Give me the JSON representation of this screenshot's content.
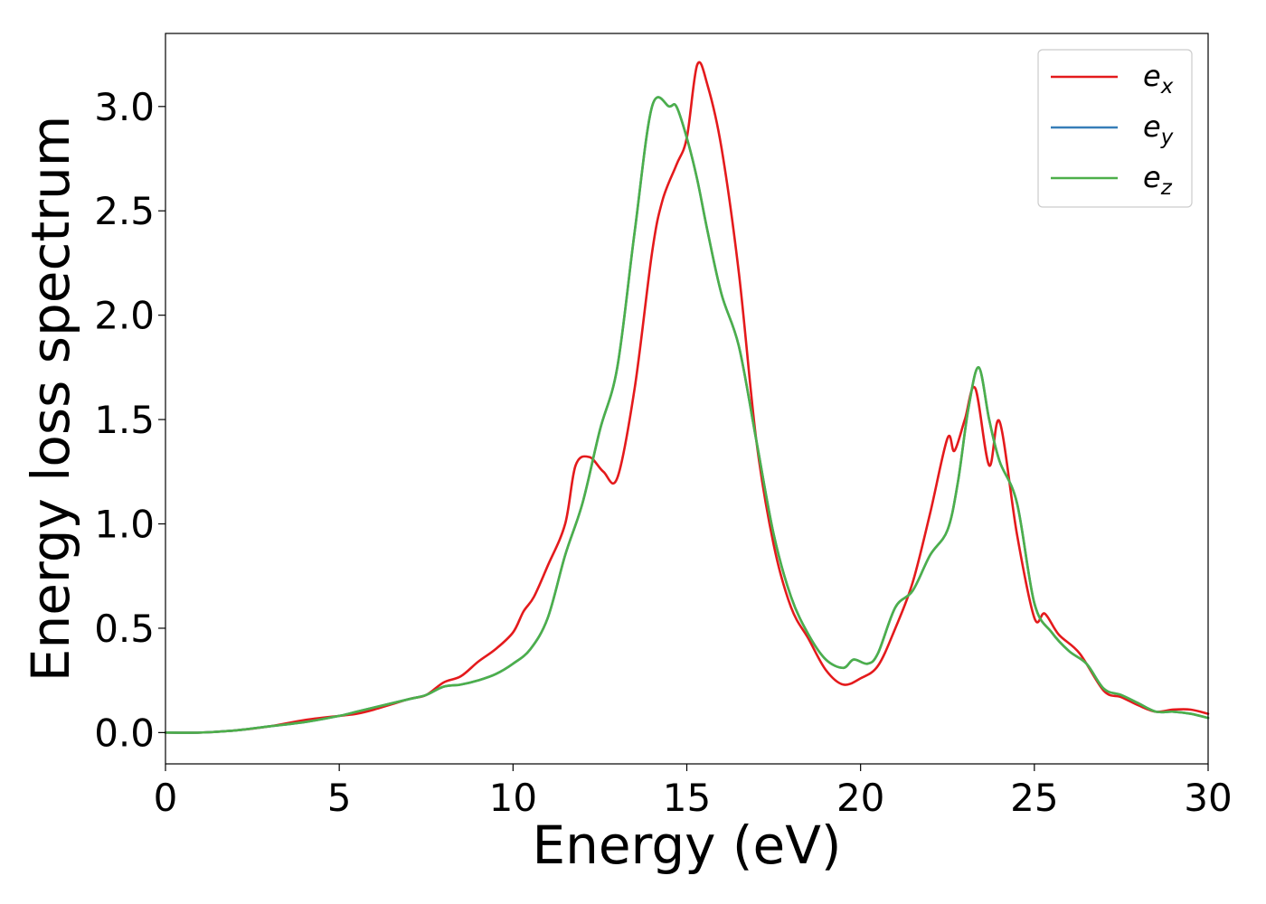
{
  "chart_data": {
    "type": "line",
    "title": "",
    "xlabel": "Energy (eV)",
    "ylabel": "Energy loss spectrum",
    "xlim": [
      0,
      30
    ],
    "ylim": [
      -0.15,
      3.35
    ],
    "xticks": [
      0,
      5,
      10,
      15,
      20,
      25,
      30
    ],
    "xtick_labels": [
      "0",
      "5",
      "10",
      "15",
      "20",
      "25",
      "30"
    ],
    "yticks": [
      0.0,
      0.5,
      1.0,
      1.5,
      2.0,
      2.5,
      3.0
    ],
    "ytick_labels": [
      "0.0",
      "0.5",
      "1.0",
      "1.5",
      "2.0",
      "2.5",
      "3.0"
    ],
    "grid": false,
    "legend_position": "top-right",
    "series": [
      {
        "name": "e",
        "subscript": "x",
        "color": "#e41a1c",
        "x": [
          0,
          1,
          2,
          3,
          4,
          5,
          5.5,
          6,
          7,
          7.5,
          8,
          8.5,
          9,
          9.5,
          10,
          10.3,
          10.6,
          11,
          11.5,
          11.8,
          12.2,
          12.6,
          13,
          13.5,
          14,
          14.3,
          14.7,
          15,
          15.3,
          15.6,
          16,
          16.5,
          17,
          17.5,
          18,
          18.5,
          19,
          19.5,
          20,
          20.5,
          21,
          21.5,
          22,
          22.5,
          22.7,
          23,
          23.3,
          23.7,
          24,
          24.5,
          25,
          25.3,
          25.7,
          26.3,
          27,
          27.5,
          28,
          28.5,
          29,
          29.5,
          30
        ],
        "y": [
          0.0,
          0.0,
          0.01,
          0.03,
          0.06,
          0.08,
          0.09,
          0.11,
          0.16,
          0.18,
          0.24,
          0.27,
          0.34,
          0.4,
          0.48,
          0.58,
          0.65,
          0.8,
          1.0,
          1.28,
          1.32,
          1.25,
          1.22,
          1.65,
          2.3,
          2.55,
          2.72,
          2.85,
          3.2,
          3.1,
          2.8,
          2.2,
          1.4,
          0.9,
          0.6,
          0.45,
          0.3,
          0.23,
          0.26,
          0.32,
          0.5,
          0.72,
          1.05,
          1.41,
          1.35,
          1.5,
          1.65,
          1.28,
          1.49,
          0.95,
          0.55,
          0.57,
          0.47,
          0.38,
          0.2,
          0.17,
          0.13,
          0.1,
          0.11,
          0.11,
          0.09
        ]
      },
      {
        "name": "e",
        "subscript": "y",
        "color": "#377eb8",
        "x": [
          0,
          1,
          2,
          3,
          4,
          5,
          5.5,
          6,
          7,
          7.5,
          8,
          8.5,
          9,
          9.5,
          10,
          10.5,
          11,
          11.5,
          12,
          12.5,
          13,
          13.5,
          14,
          14.5,
          14.7,
          15,
          15.3,
          15.6,
          16,
          16.5,
          17,
          17.5,
          18,
          18.5,
          19,
          19.5,
          19.8,
          20.2,
          20.5,
          21,
          21.5,
          22,
          22.5,
          22.8,
          23.1,
          23.4,
          23.7,
          24,
          24.5,
          25,
          25.5,
          26,
          26.5,
          27,
          27.5,
          28,
          28.5,
          29,
          29.5,
          30
        ],
        "y": [
          0.0,
          0.0,
          0.01,
          0.03,
          0.05,
          0.08,
          0.1,
          0.12,
          0.16,
          0.18,
          0.22,
          0.23,
          0.25,
          0.28,
          0.33,
          0.4,
          0.55,
          0.85,
          1.1,
          1.45,
          1.75,
          2.4,
          3.0,
          3.0,
          3.0,
          2.85,
          2.65,
          2.4,
          2.1,
          1.85,
          1.4,
          0.95,
          0.65,
          0.47,
          0.35,
          0.31,
          0.35,
          0.33,
          0.38,
          0.6,
          0.68,
          0.85,
          0.97,
          1.2,
          1.55,
          1.75,
          1.5,
          1.3,
          1.1,
          0.62,
          0.48,
          0.39,
          0.33,
          0.21,
          0.18,
          0.14,
          0.1,
          0.1,
          0.09,
          0.07
        ]
      },
      {
        "name": "e",
        "subscript": "z",
        "color": "#4daf4a",
        "x": [
          0,
          1,
          2,
          3,
          4,
          5,
          5.5,
          6,
          7,
          7.5,
          8,
          8.5,
          9,
          9.5,
          10,
          10.5,
          11,
          11.5,
          12,
          12.5,
          13,
          13.5,
          14,
          14.5,
          14.7,
          15,
          15.3,
          15.6,
          16,
          16.5,
          17,
          17.5,
          18,
          18.5,
          19,
          19.5,
          19.8,
          20.2,
          20.5,
          21,
          21.5,
          22,
          22.5,
          22.8,
          23.1,
          23.4,
          23.7,
          24,
          24.5,
          25,
          25.5,
          26,
          26.5,
          27,
          27.5,
          28,
          28.5,
          29,
          29.5,
          30
        ],
        "y": [
          0.0,
          0.0,
          0.01,
          0.03,
          0.05,
          0.08,
          0.1,
          0.12,
          0.16,
          0.18,
          0.22,
          0.23,
          0.25,
          0.28,
          0.33,
          0.4,
          0.55,
          0.85,
          1.1,
          1.45,
          1.75,
          2.4,
          3.0,
          3.0,
          3.0,
          2.85,
          2.65,
          2.4,
          2.1,
          1.85,
          1.4,
          0.95,
          0.65,
          0.47,
          0.35,
          0.31,
          0.35,
          0.33,
          0.38,
          0.6,
          0.68,
          0.85,
          0.97,
          1.2,
          1.55,
          1.75,
          1.5,
          1.3,
          1.1,
          0.62,
          0.48,
          0.39,
          0.33,
          0.21,
          0.18,
          0.14,
          0.1,
          0.1,
          0.09,
          0.07
        ]
      }
    ]
  }
}
